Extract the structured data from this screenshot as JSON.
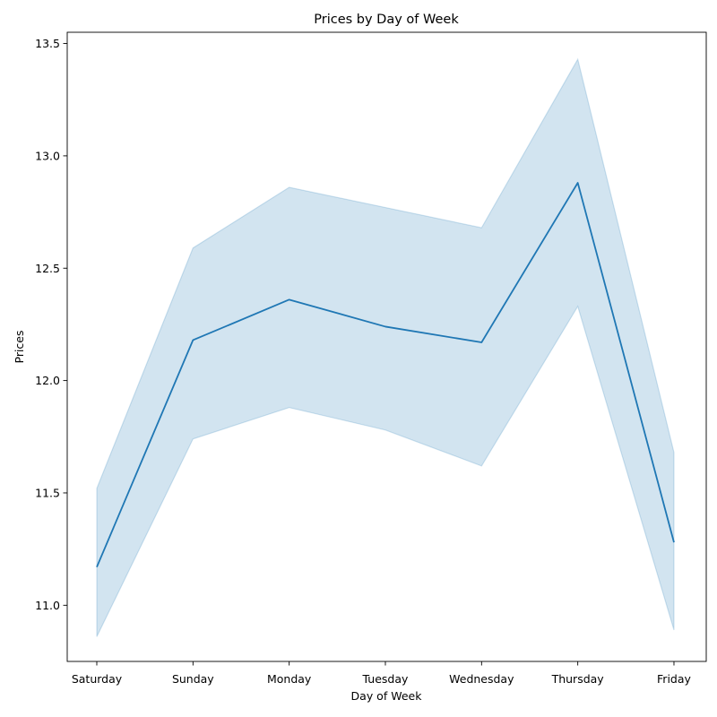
{
  "chart_data": {
    "type": "line",
    "title": "Prices by Day of Week",
    "xlabel": "Day of Week",
    "ylabel": "Prices",
    "categories": [
      "Saturday",
      "Sunday",
      "Monday",
      "Tuesday",
      "Wednesday",
      "Thursday",
      "Friday"
    ],
    "series": [
      {
        "values": [
          11.17,
          12.18,
          12.36,
          12.24,
          12.17,
          12.88,
          11.28
        ],
        "ci_lower": [
          10.86,
          11.74,
          11.88,
          11.78,
          11.62,
          12.33,
          10.89
        ],
        "ci_upper": [
          11.52,
          12.59,
          12.86,
          12.77,
          12.68,
          13.43,
          11.68
        ]
      }
    ],
    "ylim": [
      10.75,
      13.55
    ],
    "yticks": [
      "11.0",
      "11.5",
      "12.0",
      "12.5",
      "13.0",
      "13.5"
    ],
    "grid": false,
    "colors": {
      "line": "#1f77b4",
      "band": "#1f77b4"
    }
  }
}
